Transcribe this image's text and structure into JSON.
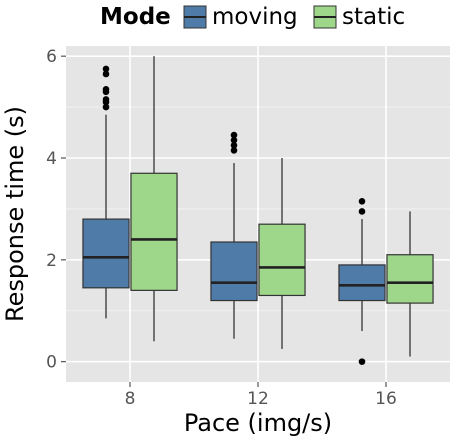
{
  "chart_data": {
    "type": "boxplot",
    "xlabel": "Pace (img/s)",
    "ylabel": "Response time (s)",
    "ylim": [
      -0.4,
      6.2
    ],
    "yticks": [
      0,
      2,
      4,
      6
    ],
    "categories": [
      "8",
      "12",
      "16"
    ],
    "grid": true,
    "legend": {
      "title": "Mode",
      "position": "top"
    },
    "series": [
      {
        "name": "moving",
        "color": "#4f7ba8",
        "boxes": [
          {
            "category": "8",
            "min": 0.85,
            "q1": 1.45,
            "median": 2.05,
            "q3": 2.8,
            "max": 4.85,
            "outliers": [
              5.0,
              5.1,
              5.15,
              5.3,
              5.35,
              5.65,
              5.75
            ]
          },
          {
            "category": "12",
            "min": 0.45,
            "q1": 1.2,
            "median": 1.55,
            "q3": 2.35,
            "max": 3.9,
            "outliers": [
              4.15,
              4.25,
              4.35,
              4.45
            ]
          },
          {
            "category": "16",
            "min": 0.6,
            "q1": 1.2,
            "median": 1.5,
            "q3": 1.9,
            "max": 2.8,
            "outliers": [
              2.95,
              3.15,
              0.0
            ]
          }
        ]
      },
      {
        "name": "static",
        "color": "#9ed68a",
        "boxes": [
          {
            "category": "8",
            "min": 0.4,
            "q1": 1.4,
            "median": 2.4,
            "q3": 3.7,
            "max": 6.0,
            "outliers": []
          },
          {
            "category": "12",
            "min": 0.25,
            "q1": 1.3,
            "median": 1.85,
            "q3": 2.7,
            "max": 4.0,
            "outliers": []
          },
          {
            "category": "16",
            "min": 0.1,
            "q1": 1.15,
            "median": 1.55,
            "q3": 2.1,
            "max": 2.95,
            "outliers": []
          }
        ]
      }
    ]
  }
}
